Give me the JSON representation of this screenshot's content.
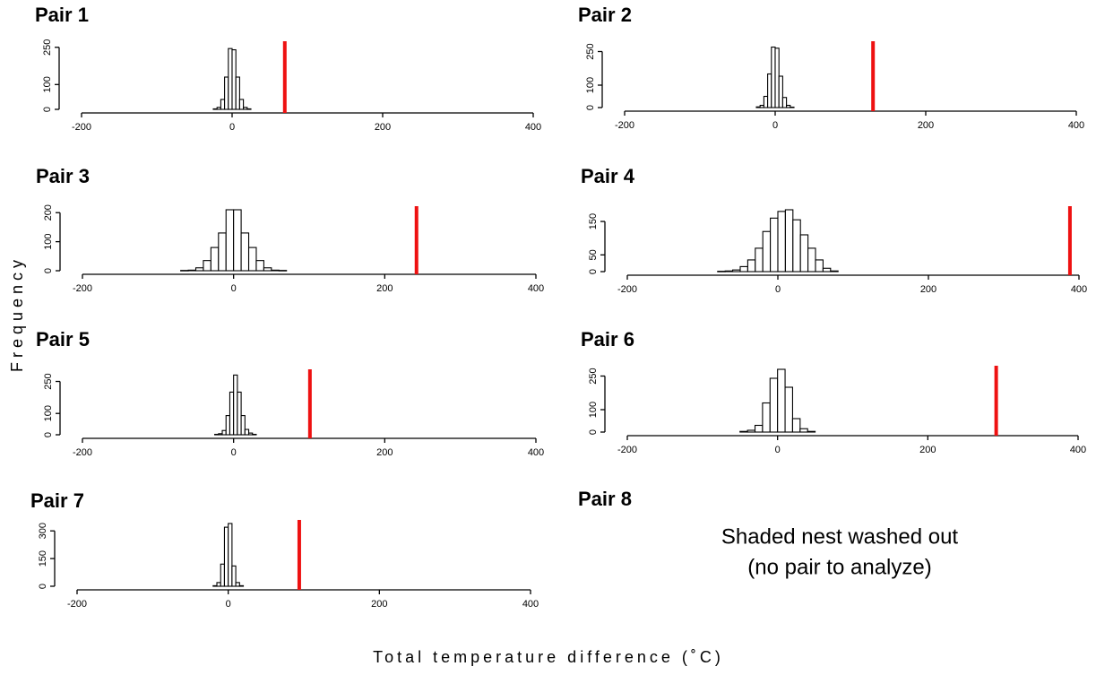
{
  "chart_data": [
    {
      "type": "histogram",
      "title": "Pair 1",
      "bins": [
        -25,
        -20,
        -15,
        -10,
        -5,
        0,
        5,
        10,
        15,
        20,
        25
      ],
      "counts": [
        2,
        8,
        40,
        130,
        245,
        240,
        130,
        40,
        8,
        2
      ],
      "color": "#ffffff",
      "observed": 70,
      "observed_color": "#ee1111",
      "xlim": [
        -200,
        400
      ],
      "xticks": [
        -200,
        0,
        200,
        400
      ],
      "ylim": [
        0,
        260
      ],
      "yticks": [
        0,
        100,
        250
      ]
    },
    {
      "type": "histogram",
      "title": "Pair 2",
      "bins": [
        -25,
        -20,
        -15,
        -10,
        -5,
        0,
        5,
        10,
        15,
        20,
        25
      ],
      "counts": [
        3,
        10,
        50,
        150,
        270,
        265,
        140,
        45,
        10,
        2
      ],
      "color": "#ffffff",
      "observed": 130,
      "observed_color": "#ee1111",
      "xlim": [
        -200,
        400
      ],
      "xticks": [
        -200,
        0,
        200,
        400
      ],
      "ylim": [
        0,
        280
      ],
      "yticks": [
        0,
        100,
        250
      ]
    },
    {
      "type": "histogram",
      "title": "Pair 3",
      "bins": [
        -70,
        -60,
        -50,
        -40,
        -30,
        -20,
        -10,
        0,
        10,
        20,
        30,
        40,
        50,
        60,
        70
      ],
      "counts": [
        1,
        2,
        10,
        35,
        80,
        130,
        210,
        210,
        130,
        80,
        35,
        10,
        2,
        1
      ],
      "color": "#ffffff",
      "observed": 242,
      "observed_color": "#ee1111",
      "xlim": [
        -200,
        400
      ],
      "xticks": [
        -200,
        0,
        200,
        400
      ],
      "ylim": [
        0,
        210
      ],
      "yticks": [
        0,
        100,
        200
      ]
    },
    {
      "type": "histogram",
      "title": "Pair 4",
      "bins": [
        -80,
        -70,
        -60,
        -50,
        -40,
        -30,
        -20,
        -10,
        0,
        10,
        20,
        30,
        40,
        50,
        60,
        70,
        80
      ],
      "counts": [
        1,
        2,
        5,
        15,
        35,
        70,
        120,
        160,
        180,
        185,
        155,
        110,
        70,
        35,
        10,
        2
      ],
      "color": "#ffffff",
      "observed": 388,
      "observed_color": "#ee1111",
      "xlim": [
        -200,
        400
      ],
      "xticks": [
        -200,
        0,
        200,
        400
      ],
      "ylim": [
        0,
        185
      ],
      "yticks": [
        0,
        50,
        150
      ]
    },
    {
      "type": "histogram",
      "title": "Pair 5",
      "bins": [
        -25,
        -20,
        -15,
        -10,
        -5,
        0,
        5,
        10,
        15,
        20,
        25,
        30
      ],
      "counts": [
        2,
        5,
        20,
        90,
        200,
        280,
        200,
        90,
        25,
        8,
        2
      ],
      "color": "#ffffff",
      "observed": 101,
      "observed_color": "#ee1111",
      "xlim": [
        -200,
        400
      ],
      "xticks": [
        -200,
        0,
        200,
        400
      ],
      "ylim": [
        0,
        290
      ],
      "yticks": [
        0,
        100,
        250
      ]
    },
    {
      "type": "histogram",
      "title": "Pair 6",
      "bins": [
        -50,
        -40,
        -30,
        -20,
        -10,
        0,
        10,
        20,
        30,
        40,
        50
      ],
      "counts": [
        3,
        8,
        30,
        130,
        240,
        280,
        200,
        60,
        15,
        3
      ],
      "color": "#ffffff",
      "observed": 291,
      "observed_color": "#ee1111",
      "xlim": [
        -200,
        400
      ],
      "xticks": [
        -200,
        0,
        200,
        400
      ],
      "ylim": [
        0,
        280
      ],
      "yticks": [
        0,
        100,
        250
      ]
    },
    {
      "type": "histogram",
      "title": "Pair 7",
      "bins": [
        -20,
        -15,
        -10,
        -5,
        0,
        5,
        10,
        15,
        20
      ],
      "counts": [
        3,
        20,
        120,
        320,
        340,
        110,
        20,
        3
      ],
      "color": "#ffffff",
      "observed": 94,
      "observed_color": "#ee1111",
      "xlim": [
        -200,
        400
      ],
      "xticks": [
        -200,
        0,
        200,
        400
      ],
      "ylim": [
        0,
        340
      ],
      "yticks": [
        0,
        150,
        300
      ]
    }
  ],
  "pair8": {
    "title": "Pair 8",
    "note_lines": [
      "Shaded nest washed out",
      "(no pair to analyze)"
    ]
  },
  "y_label": "Frequency",
  "x_label": "Total temperature difference (˚C)"
}
